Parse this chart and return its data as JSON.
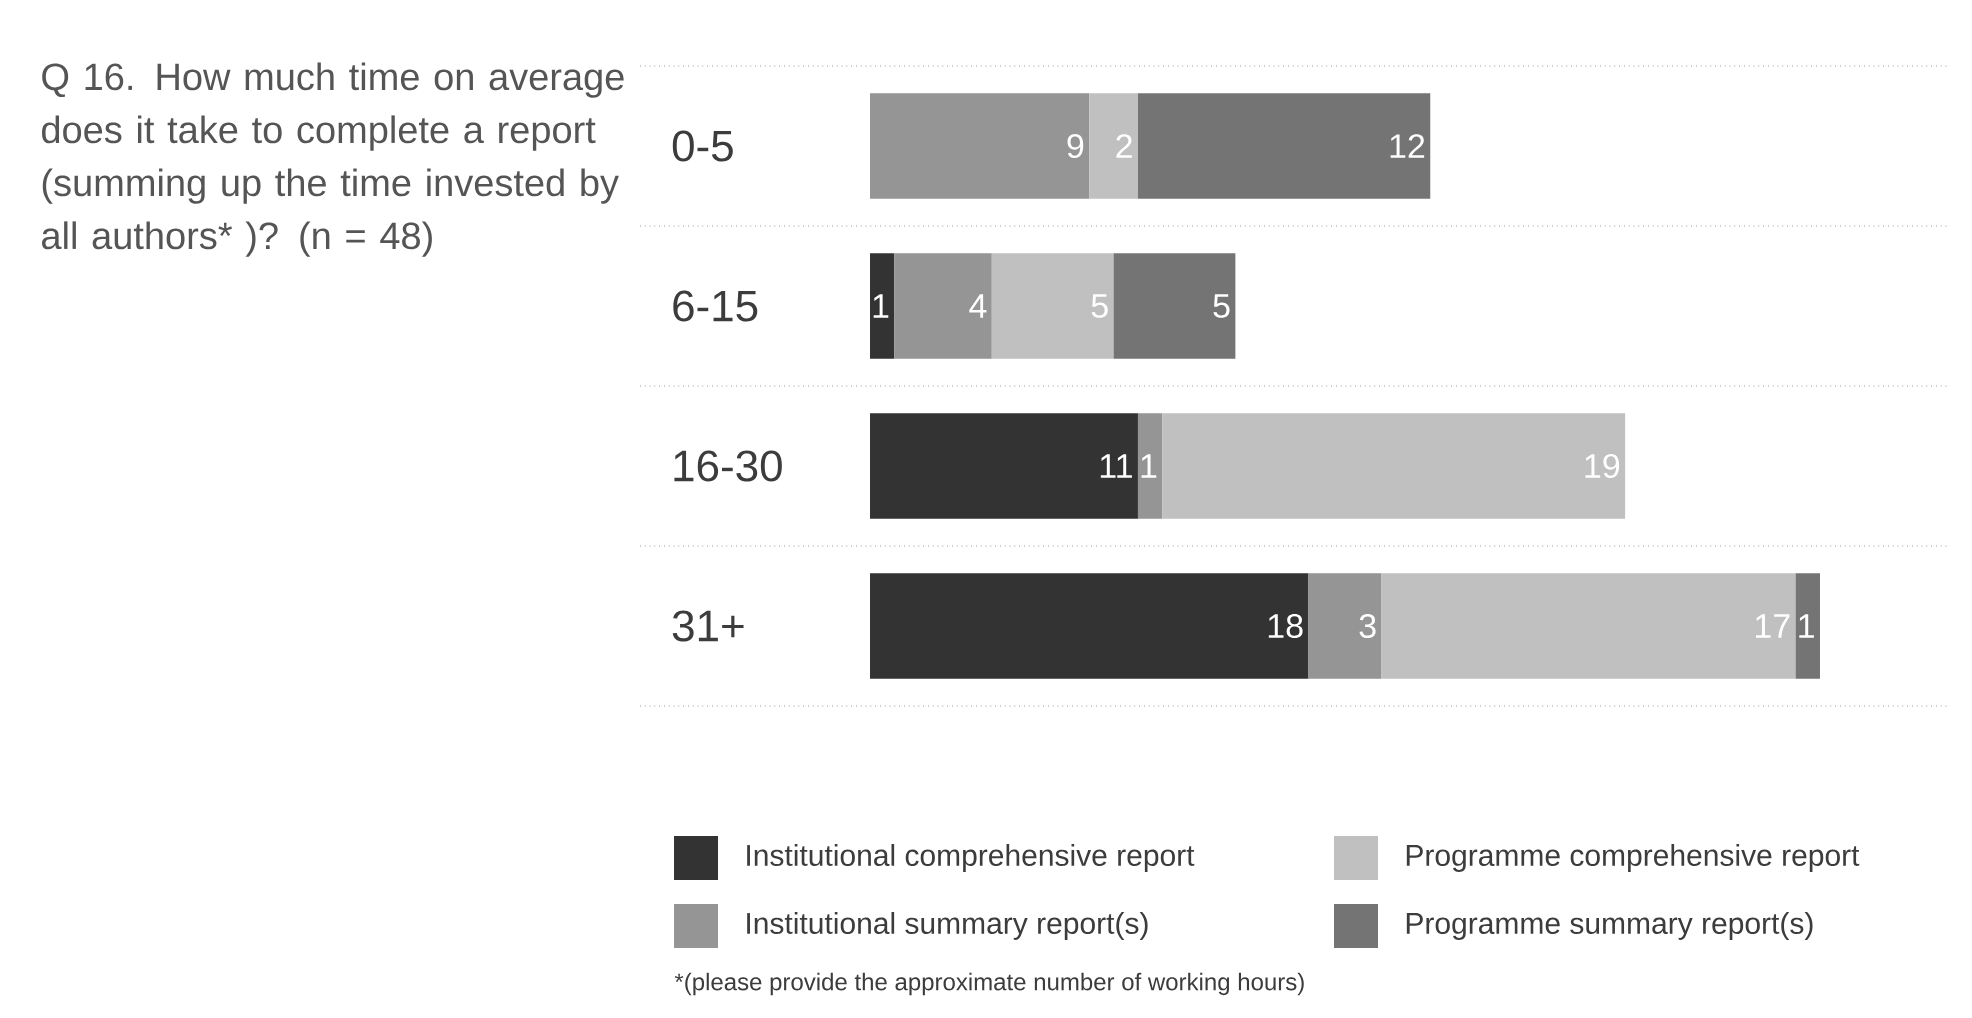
{
  "chart_data": {
    "type": "bar",
    "orientation": "horizontal",
    "stacked": true,
    "title": "Q 16. How much time on average does it take to complete a report (summing up the time invested by all authors* )? (n = 48)",
    "categories": [
      "0-5",
      "6-15",
      "16-30",
      "31+"
    ],
    "series": [
      {
        "name": "Institutional comprehensive report",
        "color": "#333333",
        "values": [
          null,
          1,
          11,
          18
        ],
        "value_labels": [
          null,
          "1",
          "11",
          "18"
        ]
      },
      {
        "name": "Institutional summary report(s)",
        "color": "#959595",
        "values": [
          9,
          4,
          1,
          3
        ],
        "value_labels": [
          "9",
          "4",
          "1",
          "3"
        ]
      },
      {
        "name": "Programme comprehensive report",
        "color": "#c0c0c0",
        "values": [
          2,
          5,
          19,
          17
        ],
        "value_labels": [
          "2",
          "5",
          "19",
          "17"
        ]
      },
      {
        "name": "Programme summary report(s)",
        "color": "#747474",
        "values": [
          12,
          5,
          null,
          1
        ],
        "value_labels": [
          "12",
          "5",
          null,
          "1"
        ]
      }
    ],
    "grid": "y",
    "legend": "bottom",
    "annotations": [
      "*(please provide the approximate number of working hours)"
    ]
  }
}
